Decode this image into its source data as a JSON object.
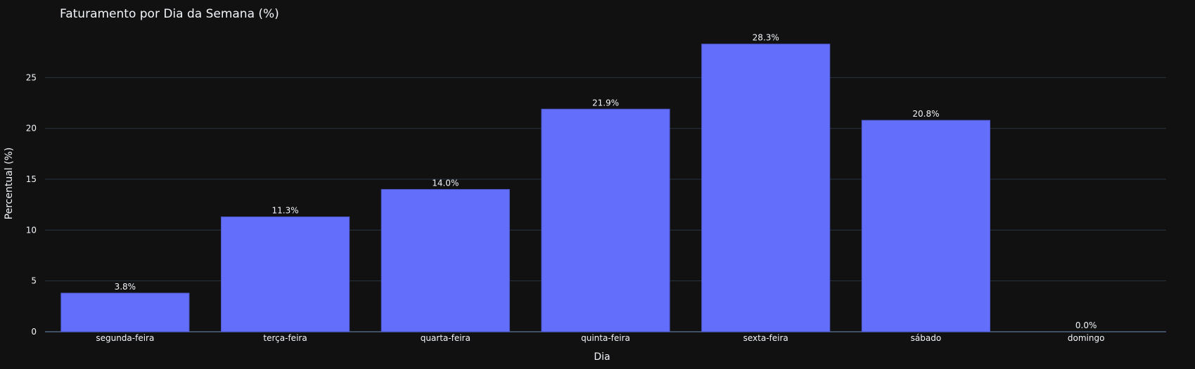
{
  "chart_data": {
    "type": "bar",
    "title": "Faturamento por Dia da Semana (%)",
    "xlabel": "Dia",
    "ylabel": "Percentual (%)",
    "categories": [
      "segunda-feira",
      "terça-feira",
      "quarta-feira",
      "quinta-feira",
      "sexta-feira",
      "sábado",
      "domingo"
    ],
    "values": [
      3.8,
      11.3,
      14.0,
      21.9,
      28.3,
      20.8,
      0.0
    ],
    "data_labels": [
      "3.8%",
      "11.3%",
      "14.0%",
      "21.9%",
      "28.3%",
      "20.8%",
      "0.0%"
    ],
    "yticks": [
      0,
      5,
      10,
      15,
      20,
      25
    ],
    "ylim": [
      0,
      29.8
    ],
    "grid": true,
    "colors": {
      "background": "#111111",
      "bar": "#636efa",
      "grid": "#283442",
      "text": "#f2f5fa"
    }
  }
}
